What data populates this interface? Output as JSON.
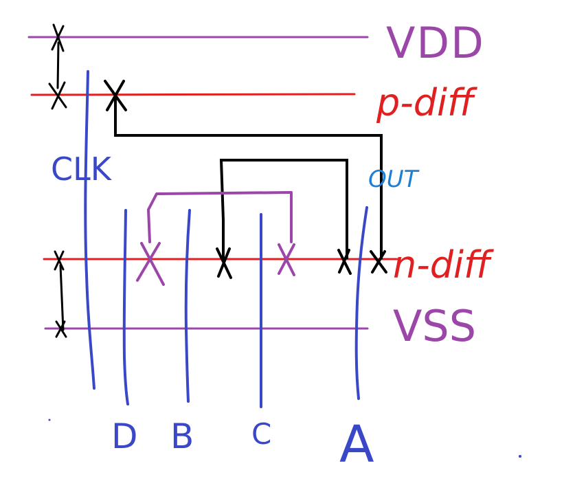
{
  "colors": {
    "rail": "#9b46a8",
    "diffusion": "#e02020",
    "gate": "#3a48c8",
    "wire": "#000000",
    "out_label": "#1e7fd6"
  },
  "labels": {
    "vdd": "VDD",
    "pdiff": "p-diff",
    "ndiff": "n-diff",
    "vss": "VSS",
    "clk": "CLK",
    "out": "OUT",
    "d": "D",
    "b": "B",
    "c": "C",
    "a": "A"
  }
}
